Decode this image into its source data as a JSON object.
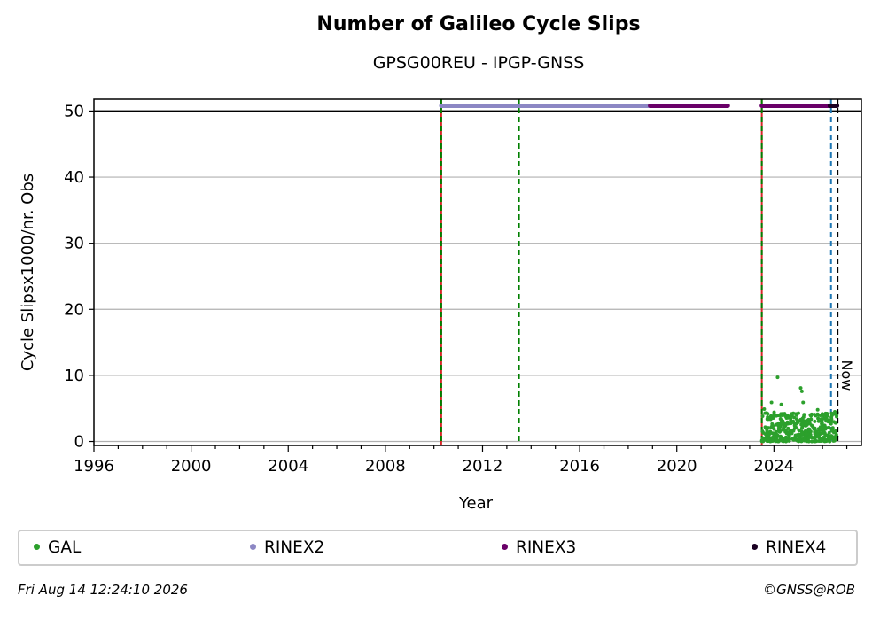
{
  "title": "Number of Galileo Cycle Slips",
  "subtitle": "GPSG00REU - IPGP-GNSS",
  "footer": {
    "date": "Fri Aug 14 12:24:10 2026",
    "copyright": "©GNSS@ROB"
  },
  "chart_data": {
    "type": "scatter",
    "title": "Number of Galileo Cycle Slips",
    "subtitle": "GPSG00REU - IPGP-GNSS",
    "xlabel": "Year",
    "ylabel": "Cycle Slipsx1000/nr. Obs",
    "xlim": [
      1996,
      2027.6
    ],
    "ylim": [
      -0.6,
      51.8
    ],
    "x_ticks": [
      1996,
      2000,
      2004,
      2008,
      2012,
      2016,
      2020,
      2024
    ],
    "y_ticks": [
      0,
      10,
      20,
      30,
      40,
      50
    ],
    "grid": "horizontal",
    "legend_placement": "below",
    "reference_line_y": 50,
    "events": [
      {
        "x": 2010.3,
        "style": "red-green-dashed"
      },
      {
        "x": 2013.5,
        "style": "green-dashed"
      },
      {
        "x": 2023.5,
        "style": "red-green-dashed"
      },
      {
        "x": 2026.35,
        "style": "blue-dashed"
      }
    ],
    "now": {
      "x": 2026.62,
      "label": "Now"
    },
    "series": [
      {
        "name": "GAL",
        "color": "#2ca02c",
        "kind": "scatter",
        "x_range": [
          2023.5,
          2026.6
        ],
        "y_typical": [
          0,
          4.5
        ],
        "outliers": [
          [
            2023.6,
            4.9
          ],
          [
            2023.9,
            5.9
          ],
          [
            2024.15,
            9.7
          ],
          [
            2024.3,
            5.6
          ],
          [
            2025.1,
            8.1
          ],
          [
            2025.15,
            7.6
          ],
          [
            2025.2,
            5.9
          ],
          [
            2025.5,
            4.0
          ],
          [
            2025.8,
            4.8
          ],
          [
            2026.0,
            4.1
          ],
          [
            2026.2,
            3.9
          ]
        ]
      },
      {
        "name": "RINEX2",
        "color": "#8c87c4",
        "kind": "band",
        "x_range": [
          2010.3,
          2018.9
        ],
        "y": 50.8
      },
      {
        "name": "RINEX3",
        "color": "#6a0068",
        "kind": "band",
        "x_range": [
          2018.9,
          2022.1
        ],
        "y": 50.8
      },
      {
        "name": "RINEX3",
        "color": "#6a0068",
        "kind": "band",
        "x_range": [
          2023.5,
          2026.3
        ],
        "y": 50.8
      },
      {
        "name": "RINEX4",
        "color": "#1a0022",
        "kind": "band",
        "x_range": [
          2026.3,
          2026.6
        ],
        "y": 50.8
      }
    ],
    "legend": [
      {
        "name": "GAL",
        "color": "#2ca02c"
      },
      {
        "name": "RINEX2",
        "color": "#8c87c4"
      },
      {
        "name": "RINEX3",
        "color": "#6a0068"
      },
      {
        "name": "RINEX4",
        "color": "#1a0022"
      }
    ]
  }
}
